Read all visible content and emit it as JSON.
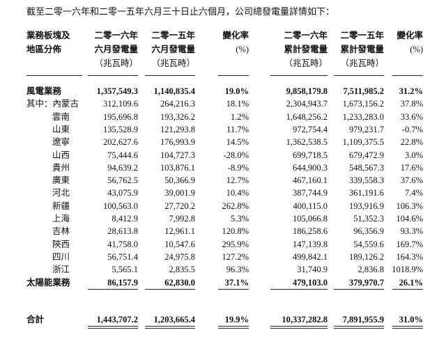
{
  "intro": "截至二零一六年和二零一五年六月三十日止六個月，公司總發電量詳情如下：",
  "header": {
    "columns": [
      [
        "業務板塊及",
        "地區分佈"
      ],
      [
        "二零一六年",
        "六月發電量",
        "（兆瓦時）"
      ],
      [
        "二零一五年",
        "六月發電量",
        "（兆瓦時）"
      ],
      [
        "變化率",
        "(%)"
      ],
      [
        "二零一六年",
        "累計發電量",
        "（兆瓦時）"
      ],
      [
        "二零一五年",
        "累計發電量",
        "（兆瓦時）"
      ],
      [
        "變化率",
        "(%)"
      ]
    ]
  },
  "table": {
    "rows": [
      [
        "風電業務",
        "1,357,549.3",
        "1,140,835.4",
        "19.0%",
        "9,858,179.8",
        "7,511,985.2",
        "31.2%"
      ],
      [
        "其中：內蒙古",
        "312,109.6",
        "264,216.3",
        "18.1%",
        "2,304,943.7",
        "1,673,156.2",
        "37.8%"
      ],
      [
        "雲南",
        "195,696.8",
        "193,326.2",
        "1.2%",
        "1,648,256.2",
        "1,233,283.0",
        "33.6%"
      ],
      [
        "山東",
        "135,528.9",
        "121,293.8",
        "11.7%",
        "972,754.4",
        "979,231.7",
        "-0.7%"
      ],
      [
        "遼寧",
        "202,627.6",
        "176,993.9",
        "14.5%",
        "1,362,538.5",
        "1,109,375.5",
        "22.8%"
      ],
      [
        "山西",
        "75,444.6",
        "104,727.3",
        "-28.0%",
        "699,718.5",
        "679,472.9",
        "3.0%"
      ],
      [
        "貴州",
        "94,639.2",
        "103,876.1",
        "-8.9%",
        "644,900.3",
        "548,567.3",
        "17.6%"
      ],
      [
        "廣東",
        "56,762.5",
        "50,366.9",
        "12.7%",
        "467,160.1",
        "339,558.3",
        "37.6%"
      ],
      [
        "河北",
        "43,075.9",
        "39,001.9",
        "10.4%",
        "387,744.9",
        "361,191.6",
        "7.4%"
      ],
      [
        "新疆",
        "100,563.0",
        "27,720.2",
        "262.8%",
        "400,115.0",
        "193,916.9",
        "106.3%"
      ],
      [
        "上海",
        "8,412.9",
        "7,992.8",
        "5.3%",
        "105,066.8",
        "51,352.3",
        "104.6%"
      ],
      [
        "吉林",
        "28,613.8",
        "12,961.1",
        "120.8%",
        "186,258.6",
        "96,356.9",
        "93.3%"
      ],
      [
        "陝西",
        "41,758.0",
        "10,547.6",
        "295.9%",
        "147,139.8",
        "54,559.6",
        "169.7%"
      ],
      [
        "四川",
        "56,751.4",
        "24,975.8",
        "127.2%",
        "499,842.1",
        "189,126.2",
        "164.3%"
      ],
      [
        "浙江",
        "5,565.1",
        "2,835.5",
        "96.3%",
        "31,740.9",
        "2,836.8",
        "1018.9%"
      ],
      [
        "太陽能業務",
        "86,157.9",
        "62,830.0",
        "37.1%",
        "479,103.0",
        "379,970.7",
        "26.1%"
      ]
    ],
    "total": [
      "合計",
      "1,443,707.2",
      "1,203,665.4",
      "19.9%",
      "10,337,282.8",
      "7,891,955.9",
      "31.0%"
    ]
  }
}
